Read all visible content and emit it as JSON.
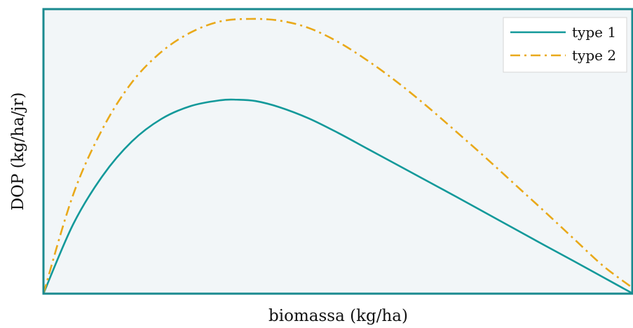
{
  "chart_data": {
    "type": "line",
    "title": "",
    "xlabel": "biomassa (kg/ha)",
    "ylabel": "DOP (kg/ha/jr)",
    "xlim": [
      0,
      1
    ],
    "ylim": [
      0,
      1
    ],
    "x_ticks_visible": false,
    "y_ticks_visible": false,
    "grid": false,
    "legend_position": "top-right",
    "background_color": "#f2f6f8",
    "frame_color": "#1a8a8f",
    "series": [
      {
        "name": "type 1",
        "color": "#13999a",
        "style": "solid",
        "x": [
          0.0,
          0.05,
          0.1,
          0.15,
          0.2,
          0.25,
          0.3,
          0.328,
          0.36,
          0.4,
          0.45,
          0.5,
          0.55,
          0.6,
          0.65,
          0.7,
          0.75,
          0.8,
          0.85,
          0.9,
          0.95,
          1.0
        ],
        "y": [
          0.0,
          0.251,
          0.428,
          0.554,
          0.636,
          0.683,
          0.704,
          0.706,
          0.701,
          0.679,
          0.638,
          0.585,
          0.527,
          0.469,
          0.411,
          0.353,
          0.294,
          0.235,
          0.176,
          0.118,
          0.059,
          0.0
        ]
      },
      {
        "name": "type 2",
        "color": "#e9a91a",
        "style": "dashdot",
        "x": [
          0.0,
          0.05,
          0.1,
          0.15,
          0.2,
          0.25,
          0.3,
          0.35,
          0.4,
          0.45,
          0.5,
          0.55,
          0.6,
          0.65,
          0.7,
          0.75,
          0.8,
          0.85,
          0.9,
          0.95,
          1.0
        ],
        "y": [
          0.0,
          0.358,
          0.599,
          0.769,
          0.88,
          0.951,
          0.991,
          1.0,
          0.994,
          0.967,
          0.916,
          0.848,
          0.77,
          0.683,
          0.59,
          0.495,
          0.397,
          0.299,
          0.199,
          0.1,
          0.02
        ]
      }
    ]
  }
}
